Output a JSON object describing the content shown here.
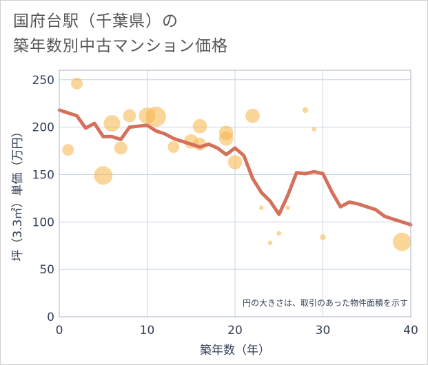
{
  "title_line1": "国府台駅（千葉県）の",
  "title_line2": "築年数別中古マンション価格",
  "chart_data": {
    "type": "scatter",
    "xlabel": "築年数（年）",
    "ylabel": "坪（3.3㎡）単価（万円）",
    "xlim": [
      0,
      40
    ],
    "ylim": [
      0,
      260
    ],
    "xticks": [
      0,
      10,
      20,
      30,
      40
    ],
    "yticks": [
      0,
      50,
      100,
      150,
      200,
      250
    ],
    "grid": true,
    "note": "円の大きさは、取引のあった物件面積を示す",
    "colors": {
      "bubble": "#f5b449",
      "line": "#d5705a",
      "grid": "#c8d4e0",
      "plot_border": "#aab6c2"
    },
    "bubbles": [
      {
        "x": 1,
        "y": 176,
        "size": 2
      },
      {
        "x": 2,
        "y": 246,
        "size": 2
      },
      {
        "x": 5,
        "y": 149,
        "size": 5
      },
      {
        "x": 6,
        "y": 204,
        "size": 4
      },
      {
        "x": 7,
        "y": 178,
        "size": 2.5
      },
      {
        "x": 8,
        "y": 212,
        "size": 2.5
      },
      {
        "x": 10,
        "y": 212,
        "size": 4
      },
      {
        "x": 11,
        "y": 211,
        "size": 6
      },
      {
        "x": 13,
        "y": 179,
        "size": 2
      },
      {
        "x": 15,
        "y": 185,
        "size": 3
      },
      {
        "x": 16,
        "y": 201,
        "size": 3
      },
      {
        "x": 16,
        "y": 182,
        "size": 2.5
      },
      {
        "x": 19,
        "y": 194,
        "size": 3
      },
      {
        "x": 19,
        "y": 188,
        "size": 3
      },
      {
        "x": 20,
        "y": 163,
        "size": 3
      },
      {
        "x": 22,
        "y": 212,
        "size": 3
      },
      {
        "x": 23,
        "y": 115,
        "size": 0.3
      },
      {
        "x": 24,
        "y": 78,
        "size": 0.3
      },
      {
        "x": 25,
        "y": 88,
        "size": 0.3
      },
      {
        "x": 26,
        "y": 115,
        "size": 0.3
      },
      {
        "x": 28,
        "y": 218,
        "size": 0.5
      },
      {
        "x": 29,
        "y": 198,
        "size": 0.3
      },
      {
        "x": 30,
        "y": 84,
        "size": 0.5
      },
      {
        "x": 39,
        "y": 79,
        "size": 5
      }
    ],
    "trend": {
      "x": [
        0,
        1,
        2,
        3,
        4,
        5,
        6,
        7,
        8,
        9,
        10,
        11,
        12,
        13,
        14,
        15,
        16,
        17,
        18,
        19,
        20,
        21,
        22,
        23,
        24,
        25,
        26,
        27,
        28,
        29,
        30,
        31,
        32,
        33,
        34,
        35,
        36,
        37,
        38,
        39,
        40
      ],
      "y": [
        218,
        215,
        212,
        199,
        204,
        190,
        190,
        187,
        200,
        201,
        202,
        196,
        193,
        188,
        185,
        182,
        179,
        182,
        178,
        171,
        178,
        170,
        146,
        131,
        122,
        108,
        128,
        152,
        151,
        153,
        151,
        132,
        116,
        121,
        119,
        116,
        113,
        106,
        103,
        100,
        97
      ]
    }
  }
}
